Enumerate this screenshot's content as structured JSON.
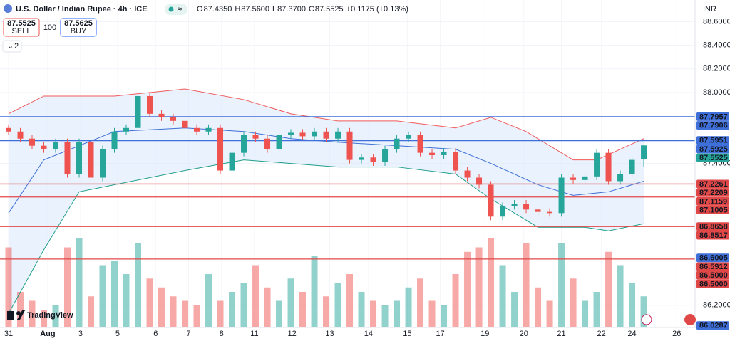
{
  "header": {
    "title": "U.S. Dollar / Indian Rupee · 4h · ICE",
    "ohlc": [
      {
        "key": "O",
        "value": "87.4350"
      },
      {
        "key": "H",
        "value": "87.5600"
      },
      {
        "key": "L",
        "value": "87.3700"
      },
      {
        "key": "C",
        "value": "87.5525"
      }
    ],
    "change": "+0.1175 (+0.13%)",
    "sell_price": "87.5525",
    "sell_label": "SELL",
    "spread": "100",
    "buy_price": "87.5625",
    "buy_label": "BUY",
    "indicators_count": "2",
    "currency": "INR",
    "logo": "TradingView"
  },
  "chart_data": {
    "type": "candlestick",
    "up_color": "#26a69a",
    "down_color": "#ef5350",
    "open": [
      87.7,
      87.67,
      87.61,
      87.55,
      87.52,
      87.58,
      87.31,
      87.58,
      87.28,
      87.52,
      87.67,
      87.7,
      87.97,
      87.82,
      87.79,
      87.76,
      87.7,
      87.67,
      87.7,
      87.34,
      87.49,
      87.64,
      87.61,
      87.52,
      87.64,
      87.66,
      87.63,
      87.67,
      87.61,
      87.67,
      87.43,
      87.45,
      87.41,
      87.52,
      87.61,
      87.64,
      87.49,
      87.47,
      87.5,
      87.34,
      87.28,
      87.22,
      86.95,
      87.04,
      87.06,
      87.01,
      86.99,
      86.98,
      87.28,
      87.26,
      87.29,
      87.49,
      87.25,
      87.31,
      87.435
    ],
    "high": [
      87.73,
      87.7,
      87.64,
      87.58,
      87.61,
      87.61,
      87.61,
      87.61,
      87.55,
      87.7,
      87.73,
      88.0,
      88.0,
      87.85,
      87.82,
      87.79,
      87.73,
      87.73,
      87.73,
      87.52,
      87.67,
      87.67,
      87.64,
      87.67,
      87.69,
      87.69,
      87.7,
      87.7,
      87.7,
      87.7,
      87.48,
      87.48,
      87.55,
      87.64,
      87.67,
      87.67,
      87.52,
      87.53,
      87.53,
      87.37,
      87.31,
      87.25,
      87.07,
      87.09,
      87.09,
      87.04,
      87.02,
      87.31,
      87.31,
      87.32,
      87.52,
      87.52,
      87.34,
      87.46,
      87.56
    ],
    "low": [
      87.64,
      87.58,
      87.52,
      87.49,
      87.49,
      87.28,
      87.28,
      87.25,
      87.25,
      87.49,
      87.64,
      87.67,
      87.79,
      87.76,
      87.73,
      87.67,
      87.64,
      87.64,
      87.31,
      87.31,
      87.46,
      87.58,
      87.49,
      87.49,
      87.61,
      87.6,
      87.6,
      87.58,
      87.58,
      87.4,
      87.4,
      87.38,
      87.38,
      87.49,
      87.58,
      87.46,
      87.44,
      87.44,
      87.31,
      87.25,
      87.19,
      86.92,
      86.92,
      87.01,
      86.98,
      86.96,
      86.95,
      86.95,
      87.23,
      87.23,
      87.26,
      87.22,
      87.22,
      87.28,
      87.37
    ],
    "close": [
      87.67,
      87.61,
      87.55,
      87.52,
      87.58,
      87.31,
      87.58,
      87.28,
      87.52,
      87.67,
      87.7,
      87.97,
      87.82,
      87.79,
      87.76,
      87.7,
      87.67,
      87.7,
      87.34,
      87.49,
      87.64,
      87.61,
      87.52,
      87.64,
      87.66,
      87.63,
      87.67,
      87.61,
      87.67,
      87.43,
      87.45,
      87.41,
      87.52,
      87.61,
      87.64,
      87.49,
      87.47,
      87.5,
      87.34,
      87.28,
      87.22,
      86.95,
      87.04,
      87.06,
      87.01,
      86.99,
      86.98,
      87.28,
      87.26,
      87.29,
      87.49,
      87.25,
      87.31,
      87.43,
      87.5525
    ],
    "volume": [
      90,
      40,
      30,
      20,
      25,
      90,
      100,
      35,
      70,
      75,
      60,
      95,
      55,
      45,
      35,
      30,
      25,
      60,
      30,
      40,
      50,
      70,
      45,
      30,
      55,
      40,
      80,
      35,
      50,
      60,
      40,
      30,
      25,
      30,
      45,
      55,
      30,
      25,
      60,
      85,
      90,
      100,
      70,
      40,
      95,
      45,
      30,
      95,
      55,
      30,
      40,
      85,
      70,
      50,
      35
    ],
    "bands": [
      {
        "color": "#f05a5a",
        "x": [
          0,
          3,
          9,
          15,
          20,
          24,
          28,
          33,
          38,
          41,
          44,
          48,
          50,
          54
        ],
        "values": [
          87.82,
          87.97,
          87.97,
          88.03,
          87.94,
          87.82,
          87.76,
          87.76,
          87.7,
          87.79,
          87.67,
          87.43,
          87.43,
          87.61
        ]
      },
      {
        "color": "#3f6fd8",
        "x": [
          0,
          3,
          9,
          15,
          20,
          24,
          28,
          33,
          38,
          41,
          45,
          48,
          51,
          54
        ],
        "values": [
          86.98,
          87.43,
          87.67,
          87.7,
          87.67,
          87.61,
          87.58,
          87.55,
          87.52,
          87.4,
          87.22,
          87.13,
          87.16,
          87.25
        ]
      },
      {
        "color": "#1f9e8a",
        "x": [
          0,
          3,
          6,
          15,
          20,
          24,
          28,
          33,
          38,
          41,
          45,
          49,
          51,
          54
        ],
        "values": [
          86.13,
          86.67,
          87.16,
          87.34,
          87.43,
          87.4,
          87.37,
          87.37,
          87.31,
          87.1,
          86.86,
          86.86,
          86.83,
          86.89
        ]
      }
    ],
    "band_fill": "#dbe9fb",
    "levels": [
      {
        "value": 87.7957,
        "color": "#3f6fd8"
      },
      {
        "value": 87.5925,
        "color": "#3f6fd8"
      },
      {
        "value": 87.2261,
        "color": "#e04848"
      },
      {
        "value": 87.1159,
        "color": "#e04848"
      },
      {
        "value": 86.8658,
        "color": "#e04848"
      },
      {
        "value": 86.5912,
        "color": "#e04848"
      }
    ],
    "price_tags": [
      {
        "value": 87.7957,
        "color": "#3f6fd8"
      },
      {
        "value": 87.7906,
        "color": "#3f6fd8"
      },
      {
        "value": 87.5951,
        "color": "#3f6fd8"
      },
      {
        "value": 87.5925,
        "color": "#3f6fd8"
      },
      {
        "value": 87.5525,
        "color": "#26a69a"
      },
      {
        "value": 87.2261,
        "color": "#e04848"
      },
      {
        "value": 87.2209,
        "color": "#e04848"
      },
      {
        "value": 87.1159,
        "color": "#e04848"
      },
      {
        "value": 87.1005,
        "color": "#e04848"
      },
      {
        "value": 86.8658,
        "color": "#e04848"
      },
      {
        "value": 86.8517,
        "color": "#e04848"
      },
      {
        "value": 86.6005,
        "color": "#3f6fd8"
      },
      {
        "value": 86.5912,
        "color": "#e04848"
      },
      {
        "value": {
          "value": 86.5,
          "label": "86.5000"
        },
        "color": "#e04848"
      },
      {
        "value": {
          "value": 86.5,
          "label": "86.5000"
        },
        "color": "#e04848"
      },
      {
        "value": 86.0287,
        "color": "#3f6fd8"
      }
    ],
    "ylim": [
      86.012,
      88.783
    ],
    "yticks": [
      {
        "value": 88.6,
        "label": "88.6000"
      },
      {
        "value": 88.4,
        "label": "88.4000"
      },
      {
        "value": 88.2,
        "label": "88.2000"
      },
      {
        "value": 88.0,
        "label": "88.0000"
      },
      {
        "value": 87.4,
        "label": "87.4000"
      },
      {
        "value": 86.2,
        "label": "86.2000"
      }
    ],
    "xlim": [
      -0.727,
      58.36
    ],
    "xticks": [
      {
        "value": 0,
        "label": "31"
      },
      {
        "value": 3.33,
        "label": "Aug"
      },
      {
        "value": 6.12,
        "label": "3"
      },
      {
        "value": 9.27,
        "label": "5"
      },
      {
        "value": 12.5,
        "label": "6"
      },
      {
        "value": 15.3,
        "label": "7"
      },
      {
        "value": 18.1,
        "label": "8"
      },
      {
        "value": 20.9,
        "label": "11"
      },
      {
        "value": 24.1,
        "label": "12"
      },
      {
        "value": 27.3,
        "label": "13"
      },
      {
        "value": 30.6,
        "label": "14"
      },
      {
        "value": 33.9,
        "label": "15"
      },
      {
        "value": 36.7,
        "label": "17"
      },
      {
        "value": 40.5,
        "label": "19"
      },
      {
        "value": 43.8,
        "label": "20"
      },
      {
        "value": 47,
        "label": "21"
      },
      {
        "value": 50.4,
        "label": "22"
      },
      {
        "value": 53,
        "label": "24"
      },
      {
        "value": 56.8,
        "label": "26"
      }
    ]
  }
}
